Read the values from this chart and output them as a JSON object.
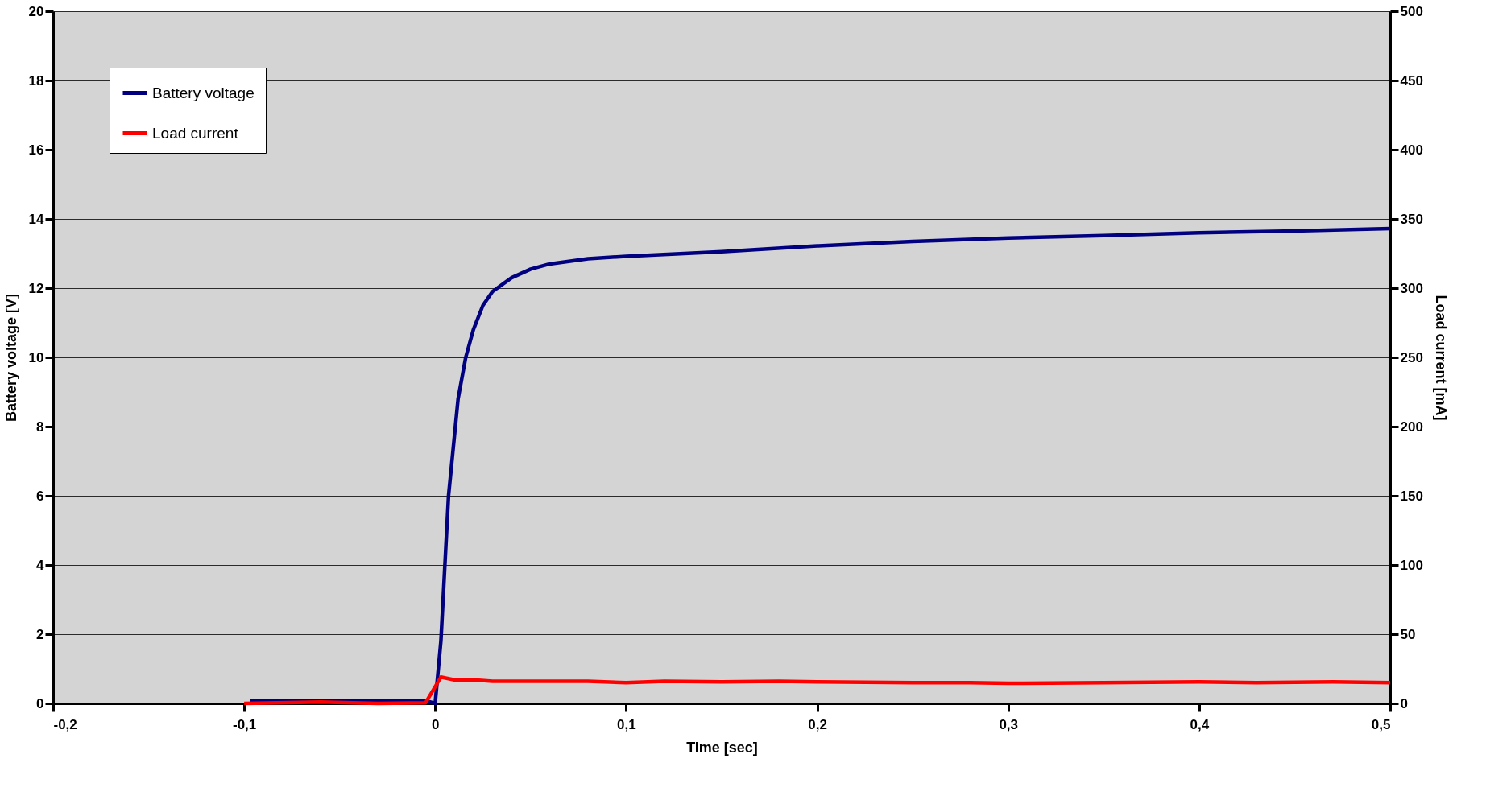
{
  "chart_data": {
    "type": "line",
    "xlabel": "Time [sec]",
    "ylabel": "Battery voltage [V]",
    "y2label": "Load current [mA]",
    "xlim": [
      -0.2,
      0.5
    ],
    "xticks": [
      {
        "value": -0.2,
        "label": "-0,2"
      },
      {
        "value": -0.1,
        "label": "-0,1"
      },
      {
        "value": 0,
        "label": "0"
      },
      {
        "value": 0.1,
        "label": "0,1"
      },
      {
        "value": 0.2,
        "label": "0,2"
      },
      {
        "value": 0.3,
        "label": "0,3"
      },
      {
        "value": 0.4,
        "label": "0,4"
      },
      {
        "value": 0.5,
        "label": "0,5"
      }
    ],
    "ylim": [
      0,
      20
    ],
    "yticks": [
      0,
      2,
      4,
      6,
      8,
      10,
      12,
      14,
      16,
      18,
      20
    ],
    "y2lim": [
      0,
      500
    ],
    "y2ticks": [
      0,
      50,
      100,
      150,
      200,
      250,
      300,
      350,
      400,
      450,
      500
    ],
    "grid": "y",
    "legend": "top left",
    "line_style": "solid",
    "series": [
      {
        "name": "Battery voltage",
        "color": "#000080",
        "x": [
          -0.097,
          -0.06,
          -0.03,
          -0.005,
          0,
          0.003,
          0.007,
          0.012,
          0.016,
          0.02,
          0.025,
          0.03,
          0.04,
          0.05,
          0.06,
          0.08,
          0.1,
          0.15,
          0.2,
          0.25,
          0.3,
          0.35,
          0.4,
          0.45,
          0.5
        ],
        "values": [
          0.08,
          0.08,
          0.08,
          0.08,
          0.0,
          1.8,
          6.0,
          8.8,
          10.0,
          10.8,
          11.5,
          11.9,
          12.3,
          12.55,
          12.7,
          12.85,
          12.92,
          13.05,
          13.22,
          13.35,
          13.45,
          13.52,
          13.6,
          13.65,
          13.72
        ]
      },
      {
        "name": "Load current",
        "color": "#ff0000",
        "axis": "y2",
        "x": [
          -0.1,
          -0.06,
          -0.03,
          -0.005,
          0.003,
          0.01,
          0.02,
          0.03,
          0.05,
          0.08,
          0.1,
          0.12,
          0.15,
          0.18,
          0.2,
          0.25,
          0.28,
          0.3,
          0.35,
          0.4,
          0.43,
          0.47,
          0.5
        ],
        "values": [
          0,
          1,
          0,
          0.5,
          19,
          17,
          17,
          16,
          16,
          16,
          15,
          16,
          15.5,
          16,
          15.5,
          15,
          15,
          14.5,
          15,
          15.5,
          15,
          15.5,
          15
        ]
      }
    ]
  }
}
